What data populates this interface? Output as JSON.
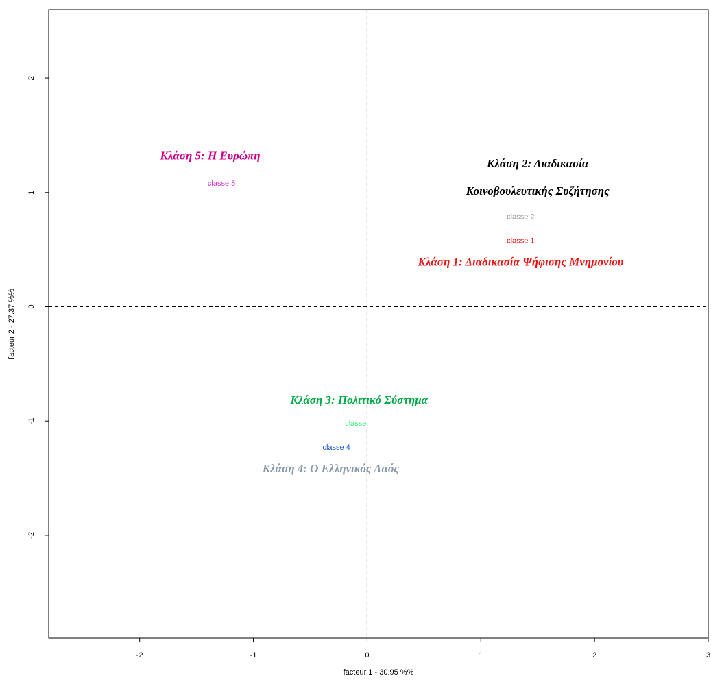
{
  "chart_data": {
    "type": "scatter",
    "title": "",
    "xlabel": "facteur  1  - 30.95 %%",
    "ylabel": "facteur  2  - 27.37 %%",
    "xlim": [
      -2.8,
      3.0
    ],
    "ylim": [
      -2.9,
      2.6
    ],
    "x_ticks": [
      -2,
      -1,
      0,
      1,
      2,
      3
    ],
    "y_ticks": [
      -2,
      -1,
      0,
      1,
      2
    ],
    "grid": false,
    "reference_lines": {
      "x": 0,
      "y": 0,
      "style": "dashed"
    },
    "points": [
      {
        "label": "classe 5",
        "x": -1.28,
        "y": 1.07,
        "color": "#cc33cc"
      },
      {
        "label": "classe 2",
        "x": 1.35,
        "y": 0.78,
        "color": "#999999"
      },
      {
        "label": "classe 1",
        "x": 1.35,
        "y": 0.57,
        "color": "#ee1111"
      },
      {
        "label": "classe",
        "x": -0.1,
        "y": -1.03,
        "color": "#33ee77"
      },
      {
        "label": "classe 4",
        "x": -0.27,
        "y": -1.24,
        "color": "#1155cc"
      }
    ],
    "annotations": [
      {
        "lines": [
          "Κλάση 5: Η Ευρώπη"
        ],
        "x": -1.38,
        "y": 1.29,
        "color": "#cc0088",
        "justify": false
      },
      {
        "lines": [
          "Κλάση       2:       Διαδικασία",
          "Κοινοβουλευτικής Συζήτησης"
        ],
        "x": 1.5,
        "y": 1.22,
        "color": "#000000",
        "justify": true
      },
      {
        "lines": [
          "Κλάση 1: Διαδικασία Ψήφισης Μνημονίου"
        ],
        "x": 1.35,
        "y": 0.36,
        "color": "#ee1111",
        "justify": false
      },
      {
        "lines": [
          "Κλάση 3: Πολιτικό Σύστημα"
        ],
        "x": -0.07,
        "y": -0.85,
        "color": "#00aa44",
        "justify": false
      },
      {
        "lines": [
          "Κλάση 4: Ο Ελληνικός Λαός"
        ],
        "x": -0.32,
        "y": -1.45,
        "color": "#8899aa",
        "justify": false
      }
    ]
  }
}
